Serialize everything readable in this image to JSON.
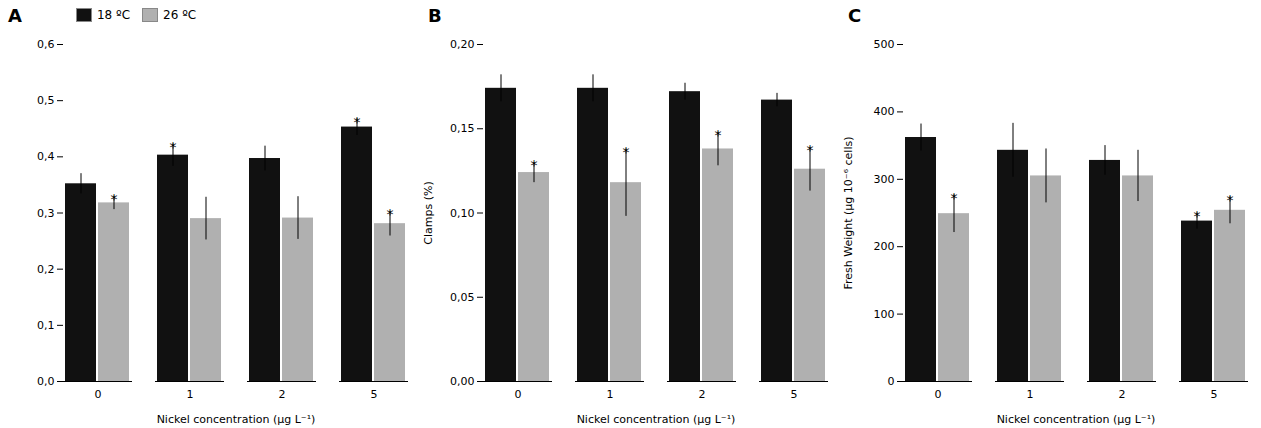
{
  "chart_data": [
    {
      "type": "bar",
      "title": "A",
      "xlabel": "Nickel concentration (µg L⁻¹)",
      "categories": [
        "0",
        "1",
        "2",
        "5"
      ],
      "ylim": [
        0.0,
        0.6
      ],
      "yticks": [
        {
          "value": 0.0,
          "label": "0,0"
        },
        {
          "value": 0.1,
          "label": "0,1"
        },
        {
          "value": 0.2,
          "label": "0,2"
        },
        {
          "value": 0.3,
          "label": "0,3"
        },
        {
          "value": 0.4,
          "label": "0,4"
        },
        {
          "value": 0.5,
          "label": "0,5"
        },
        {
          "value": 0.6,
          "label": "0,6"
        }
      ],
      "legend": "upper left",
      "series": [
        {
          "name": "18 ºC",
          "color": "#111111",
          "values": [
            0.352,
            0.403,
            0.397,
            0.453
          ],
          "errors": [
            0.018,
            0.02,
            0.022,
            0.015
          ],
          "annotations": [
            null,
            "*",
            null,
            "*"
          ]
        },
        {
          "name": "26 ºC",
          "color": "#b0b0b0",
          "values": [
            0.318,
            0.29,
            0.291,
            0.281
          ],
          "errors": [
            0.012,
            0.038,
            0.038,
            0.022
          ],
          "annotations": [
            "*",
            null,
            null,
            "*"
          ]
        }
      ]
    },
    {
      "type": "bar",
      "title": "B",
      "xlabel": "Nickel concentration (µg L⁻¹)",
      "ylabel": "Clamps (%)",
      "categories": [
        "0",
        "1",
        "2",
        "5"
      ],
      "ylim": [
        0.0,
        0.2
      ],
      "yticks": [
        {
          "value": 0.0,
          "label": "0,00"
        },
        {
          "value": 0.05,
          "label": "0,05"
        },
        {
          "value": 0.1,
          "label": "0,10"
        },
        {
          "value": 0.15,
          "label": "0,15"
        },
        {
          "value": 0.2,
          "label": "0,20"
        }
      ],
      "series": [
        {
          "color": "#111111",
          "values": [
            0.174,
            0.174,
            0.172,
            0.167
          ],
          "errors": [
            0.008,
            0.008,
            0.005,
            0.004
          ],
          "annotations": [
            null,
            null,
            null,
            null
          ]
        },
        {
          "color": "#b0b0b0",
          "values": [
            0.124,
            0.118,
            0.138,
            0.126
          ],
          "errors": [
            0.006,
            0.02,
            0.01,
            0.013
          ],
          "annotations": [
            "*",
            "*",
            "*",
            "*"
          ]
        }
      ]
    },
    {
      "type": "bar",
      "title": "C",
      "xlabel": "Nickel concentration (µg L⁻¹)",
      "ylabel": "Fresh Weight (µg 10⁻⁶ cells)",
      "categories": [
        "0",
        "1",
        "2",
        "5"
      ],
      "ylim": [
        0,
        500
      ],
      "yticks": [
        0,
        100,
        200,
        300,
        400,
        500
      ],
      "series": [
        {
          "color": "#111111",
          "values": [
            362,
            343,
            328,
            238
          ],
          "errors": [
            20,
            40,
            22,
            12
          ],
          "annotations": [
            null,
            null,
            null,
            "*"
          ]
        },
        {
          "color": "#b0b0b0",
          "values": [
            249,
            305,
            305,
            254
          ],
          "errors": [
            28,
            40,
            38,
            20
          ],
          "annotations": [
            "*",
            null,
            null,
            "*"
          ]
        }
      ]
    }
  ]
}
